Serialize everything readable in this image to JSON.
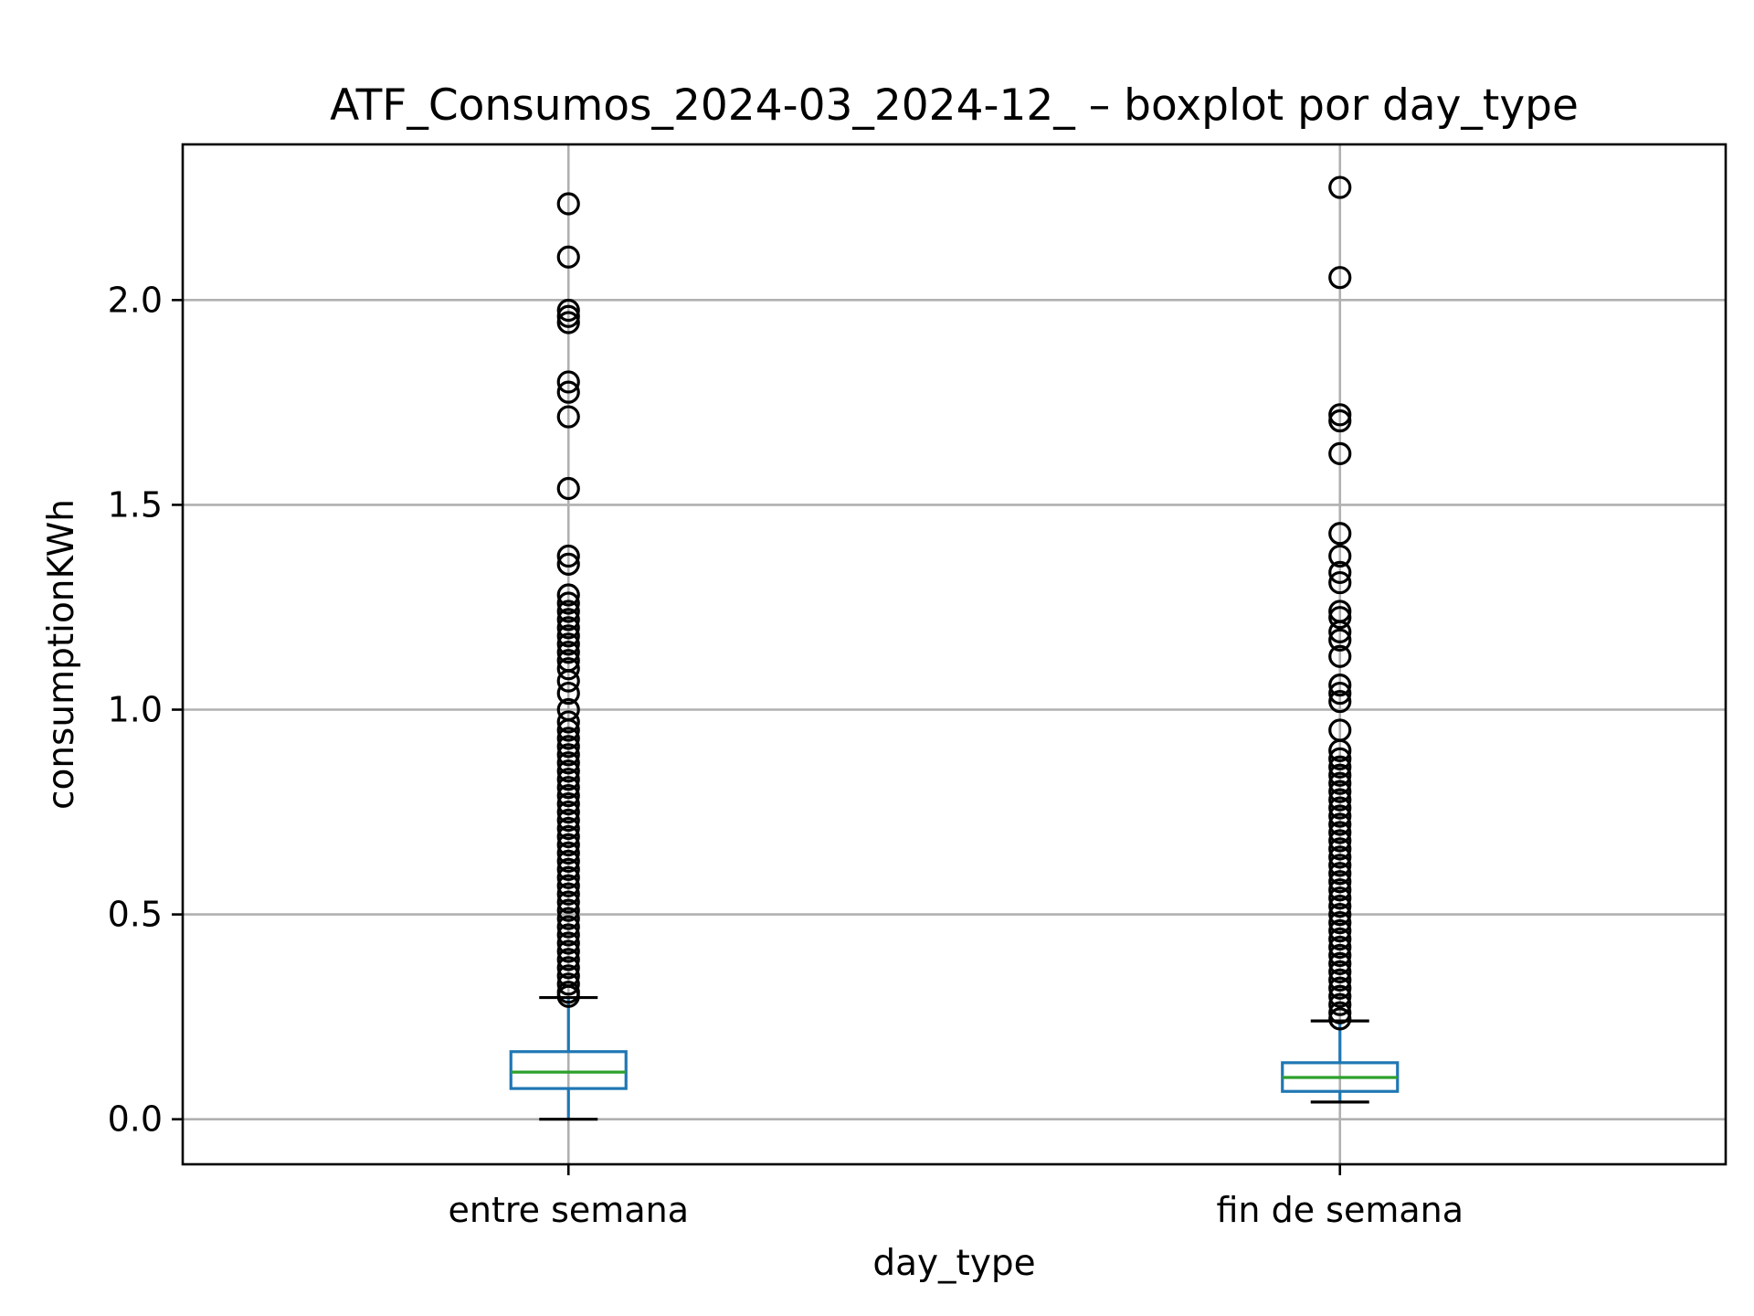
{
  "chart_data": {
    "type": "boxplot",
    "title": "ATF_Consumos_2024-03_2024-12_ – boxplot por day_type",
    "xlabel": "day_type",
    "ylabel": "consumptionKWh",
    "categories": [
      "entre semana",
      "fin de semana"
    ],
    "ylim": [
      -0.11,
      2.38
    ],
    "yticks": [
      0.0,
      0.5,
      1.0,
      1.5,
      2.0
    ],
    "ytick_labels": [
      "0.0",
      "0.5",
      "1.0",
      "1.5",
      "2.0"
    ],
    "grid": true,
    "colors": {
      "box": "#1f77b4",
      "median": "#2ca02c",
      "flier": "#000000",
      "grid": "#b0b0b0"
    },
    "boxes": [
      {
        "category": "entre semana",
        "whisker_low": 0.0,
        "q1": 0.075,
        "median": 0.115,
        "q3": 0.165,
        "whisker_high": 0.297,
        "fliers": [
          2.235,
          2.105,
          1.975,
          1.96,
          1.945,
          1.8,
          1.775,
          1.715,
          1.54,
          1.375,
          1.355,
          1.28,
          1.26,
          1.24,
          1.22,
          1.2,
          1.18,
          1.16,
          1.14,
          1.12,
          1.1,
          1.07,
          1.04,
          1.0,
          0.97,
          0.95,
          0.93,
          0.91,
          0.89,
          0.87,
          0.85,
          0.83,
          0.81,
          0.79,
          0.77,
          0.75,
          0.73,
          0.71,
          0.69,
          0.67,
          0.65,
          0.63,
          0.61,
          0.59,
          0.57,
          0.55,
          0.53,
          0.51,
          0.49,
          0.47,
          0.45,
          0.43,
          0.41,
          0.39,
          0.37,
          0.35,
          0.33,
          0.31,
          0.3
        ]
      },
      {
        "category": "fin de semana",
        "whisker_low": 0.042,
        "q1": 0.068,
        "median": 0.102,
        "q3": 0.138,
        "whisker_high": 0.24,
        "fliers": [
          2.275,
          2.055,
          1.72,
          1.705,
          1.625,
          1.43,
          1.375,
          1.335,
          1.31,
          1.24,
          1.225,
          1.19,
          1.17,
          1.13,
          1.06,
          1.04,
          1.02,
          0.95,
          0.9,
          0.88,
          0.86,
          0.84,
          0.82,
          0.8,
          0.78,
          0.76,
          0.74,
          0.72,
          0.7,
          0.68,
          0.66,
          0.64,
          0.62,
          0.6,
          0.58,
          0.56,
          0.54,
          0.52,
          0.5,
          0.48,
          0.46,
          0.44,
          0.42,
          0.4,
          0.38,
          0.36,
          0.34,
          0.32,
          0.3,
          0.28,
          0.26,
          0.245
        ]
      }
    ]
  }
}
